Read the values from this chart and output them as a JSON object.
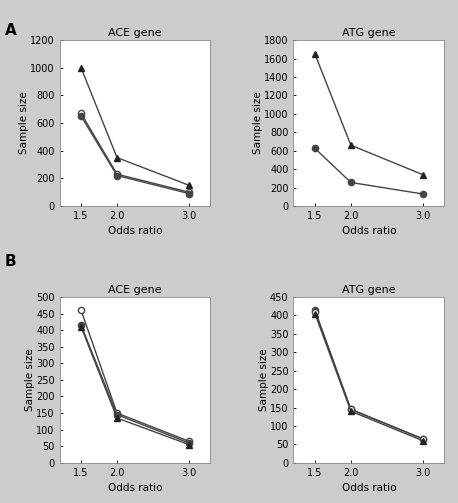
{
  "x": [
    1.5,
    2.0,
    3.0
  ],
  "panel_A": {
    "ACE": {
      "triangle": [
        1000,
        350,
        150
      ],
      "open_circle": [
        670,
        230,
        100
      ],
      "filled_circle": [
        650,
        220,
        90
      ]
    },
    "ATG": {
      "triangle": [
        1650,
        660,
        340
      ],
      "filled_circle": [
        625,
        255,
        130
      ]
    }
  },
  "panel_B": {
    "ACE": {
      "open_circle": [
        460,
        150,
        65
      ],
      "filled_circle": [
        415,
        145,
        60
      ],
      "triangle": [
        410,
        135,
        55
      ]
    },
    "ATG": {
      "filled_circle": [
        415,
        145,
        65
      ],
      "open_circle": [
        410,
        145,
        65
      ],
      "triangle": [
        405,
        140,
        60
      ]
    }
  },
  "titles": {
    "A_ACE": "ACE gene",
    "A_ATG": "ATG gene",
    "B_ACE": "ACE gene",
    "B_ATG": "ATG gene"
  },
  "xlabel": "Odds ratio",
  "ylabel": "Sample size",
  "bg_color": "#cccccc",
  "plot_bg": "#ffffff",
  "line_color": "#444444",
  "xticks": [
    1.5,
    2.0,
    3.0
  ],
  "xtick_labels": [
    "1.5",
    "2.0",
    "3.0"
  ],
  "ylims": {
    "A_ACE": [
      0,
      1200
    ],
    "A_ATG": [
      0,
      1800
    ],
    "B_ACE": [
      0,
      500
    ],
    "B_ATG": [
      0,
      450
    ]
  },
  "yticks": {
    "A_ACE": [
      0,
      200,
      400,
      600,
      800,
      1000,
      1200
    ],
    "A_ATG": [
      0,
      200,
      400,
      600,
      800,
      1000,
      1200,
      1400,
      1600,
      1800
    ],
    "B_ACE": [
      0,
      50,
      100,
      150,
      200,
      250,
      300,
      350,
      400,
      450,
      500
    ],
    "B_ATG": [
      0,
      50,
      100,
      150,
      200,
      250,
      300,
      350,
      400,
      450
    ]
  }
}
